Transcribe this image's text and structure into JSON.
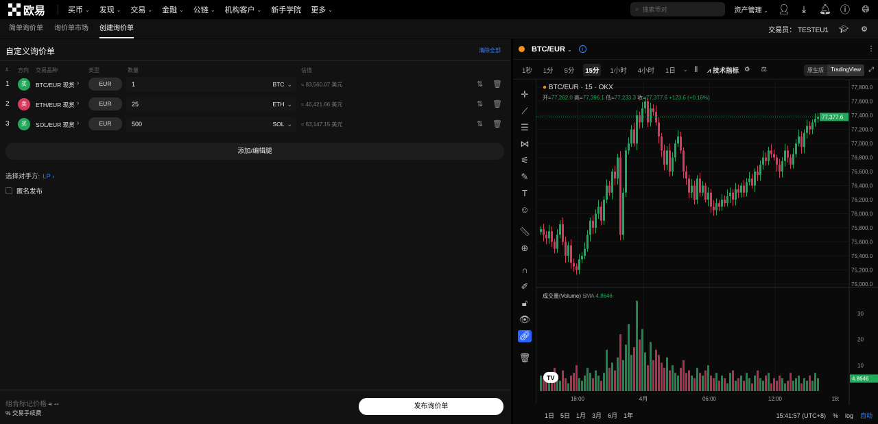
{
  "nav": {
    "brand": "欧易",
    "items": [
      "买币",
      "发现",
      "交易",
      "金融",
      "公链",
      "机构客户",
      "新手学院",
      "更多"
    ],
    "items_with_chevron": [
      true,
      true,
      true,
      true,
      true,
      true,
      false,
      true
    ],
    "search_placeholder": "搜索币对",
    "assets": "资产管理"
  },
  "subnav": {
    "tabs": [
      "简单询价单",
      "询价单市场",
      "创建询价单"
    ],
    "active": 2,
    "trader_label": "交易员：",
    "trader": "TESTEU1"
  },
  "panel": {
    "title": "自定义询价单",
    "clear_all": "清除全部",
    "headers": {
      "idx": "#",
      "side": "方向",
      "instrument": "交易品种",
      "type": "类型",
      "qty": "数量",
      "est": "估值"
    },
    "legs": [
      {
        "idx": "1",
        "side": "买",
        "side_color": "#22a85a",
        "pair": "BTC/EUR 现货",
        "ccy": "EUR",
        "qty": "1",
        "unit": "BTC",
        "est": "≈ 83,560.07 美元"
      },
      {
        "idx": "2",
        "side": "卖",
        "side_color": "#d63a5c",
        "pair": "ETH/EUR 现货",
        "ccy": "EUR",
        "qty": "25",
        "unit": "ETH",
        "est": "≈ 46,421.66 美元"
      },
      {
        "idx": "3",
        "side": "买",
        "side_color": "#22a85a",
        "pair": "SOL/EUR 现货",
        "ccy": "EUR",
        "qty": "500",
        "unit": "SOL",
        "est": "≈ 63,147.15 美元"
      }
    ],
    "add_legs": "添加/编辑腿",
    "counterparty_label": "选择对手方:",
    "counterparty": "LP",
    "anonymous": "匿名发布",
    "footer_label": "组合标记价格",
    "footer_value": "≈ --",
    "fee": "% 交易手续费",
    "publish": "发布询价单"
  },
  "chart": {
    "symbol": "BTC/EUR",
    "timeframes": [
      "1秒",
      "1分",
      "5分",
      "15分",
      "1小时",
      "4小时",
      "1日"
    ],
    "active_tf": 3,
    "indicators": "技术指标",
    "view_modes": [
      "原生版",
      "TradingView"
    ],
    "active_view": 1,
    "legend": "BTC/EUR · 15 · OKX",
    "ohlc": {
      "o_label": "开=",
      "o": "77,262.0",
      "h_label": "高=",
      "h": "77,396.1",
      "l_label": "低=",
      "l": "77,233.3",
      "c_label": "收=",
      "c": "77,377.6",
      "chg": "+123.6 (+0.16%)"
    },
    "volume_legend": "成交量(Volume)",
    "volume_sma_label": "SMA",
    "volume_sma": "4.8646",
    "ranges": [
      "1日",
      "5日",
      "1月",
      "3月",
      "6月",
      "1年"
    ],
    "clock": "15:41:57 (UTC+8)",
    "pct": "%",
    "log": "log",
    "auto": "自动"
  },
  "chart_data": {
    "type": "candlestick",
    "interval": "15m",
    "y_ticks": [
      75000,
      75200,
      75400,
      75600,
      75800,
      76000,
      76200,
      76400,
      76600,
      76800,
      77000,
      77200,
      77400,
      77600,
      77800
    ],
    "y_tick_labels": [
      "75,000.0",
      "75,200.0",
      "75,400.0",
      "75,600.0",
      "75,800.0",
      "76,000.0",
      "76,200.0",
      "76,400.0",
      "76,600.0",
      "76,800.0",
      "77,000.0",
      "77,200.0",
      "77,400.0",
      "77,600.0",
      "77,800.0"
    ],
    "ylim": [
      74950,
      77900
    ],
    "last_price": 77377.6,
    "last_price_label": "77,377.6",
    "x_tick_labels": [
      "18:00",
      "4月",
      "06:00",
      "12:00",
      "18:"
    ],
    "closes": [
      75780,
      75700,
      75650,
      75750,
      75600,
      75500,
      75700,
      75850,
      75600,
      75400,
      75550,
      75300,
      75250,
      75200,
      75350,
      75400,
      75500,
      75700,
      75900,
      75800,
      76000,
      76100,
      75900,
      76200,
      76400,
      76300,
      76600,
      76500,
      76800,
      75700,
      76300,
      76900,
      77000,
      77200,
      77000,
      77400,
      77300,
      77500,
      77600,
      77300,
      77500,
      77450,
      77300,
      77100,
      76900,
      76700,
      76900,
      76600,
      76800,
      77000,
      77100,
      76900,
      76600,
      76500,
      76300,
      76400,
      76200,
      76500,
      76300,
      76400,
      76200,
      76300,
      76100,
      76050,
      76150,
      76100,
      76200,
      76150,
      76250,
      76300,
      76200,
      76350,
      76300,
      76400,
      76300,
      76450,
      76500,
      76400,
      76600,
      76550,
      76700,
      76800,
      76750,
      76900,
      76850,
      76800,
      76700,
      76600,
      76750,
      76900,
      76800,
      76700,
      76850,
      77000,
      77100,
      76950,
      77150,
      77250,
      77200,
      77300,
      77350,
      77377.6
    ],
    "volume_ticks": [
      10,
      20,
      30
    ],
    "volume_ylim": [
      0,
      38
    ],
    "volume_last_label": "4.8646",
    "volumes": [
      6,
      5,
      4,
      7,
      5,
      9,
      6,
      4,
      8,
      5,
      3,
      6,
      7,
      10,
      5,
      4,
      6,
      9,
      7,
      5,
      8,
      6,
      4,
      7,
      16,
      9,
      11,
      8,
      13,
      22,
      12,
      18,
      26,
      14,
      17,
      35,
      20,
      24,
      15,
      10,
      19,
      12,
      16,
      14,
      11,
      9,
      13,
      8,
      10,
      7,
      6,
      9,
      12,
      7,
      8,
      6,
      5,
      9,
      7,
      6,
      8,
      10,
      6,
      5,
      7,
      4,
      6,
      5,
      3,
      7,
      8,
      4,
      5,
      6,
      4,
      7,
      5,
      3,
      6,
      8,
      5,
      4,
      6,
      7,
      3,
      5,
      4,
      6,
      5,
      3,
      4,
      7,
      4,
      5,
      6,
      3,
      5,
      4,
      6,
      4,
      7,
      5
    ]
  }
}
